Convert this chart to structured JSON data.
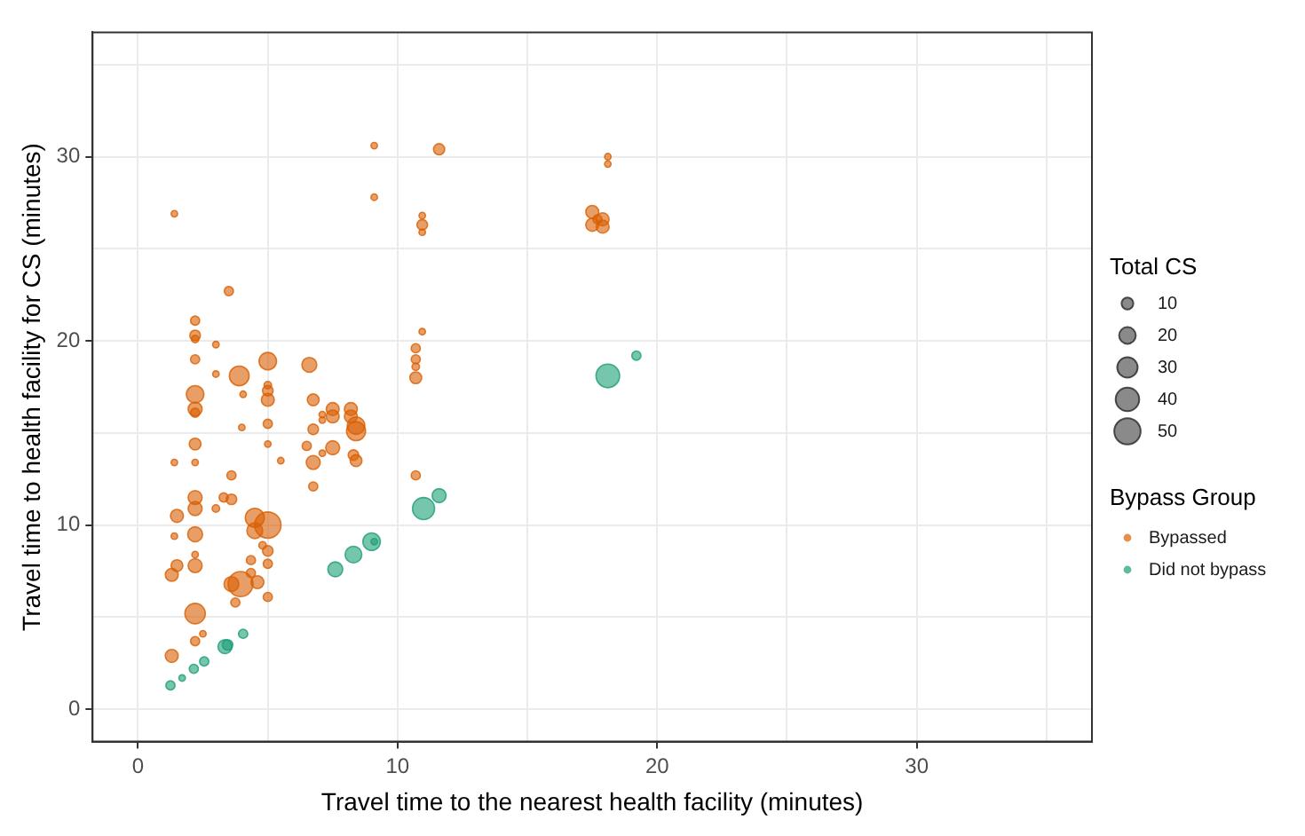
{
  "chart_data": {
    "type": "bubble",
    "xlabel": "Travel time to the nearest health facility (minutes)",
    "ylabel": "Travel time to health facility for CS (minutes)",
    "legend_title": "Bypass Group",
    "annotations": [
      "Total CS"
    ],
    "size_legend": [
      10,
      20,
      30,
      40,
      50
    ],
    "legend": "right",
    "grid": true,
    "xlim": [
      -1.75,
      36.75
    ],
    "ylim": [
      -1.75,
      36.75
    ],
    "xticks": [
      0,
      {
        "value": 5,
        "label": null
      },
      10,
      {
        "value": 15,
        "label": null
      },
      20,
      {
        "value": 25,
        "label": null
      },
      30,
      {
        "value": 35,
        "label": null
      }
    ],
    "yticks": [
      0,
      {
        "value": 5,
        "label": null
      },
      10,
      {
        "value": 15,
        "label": null
      },
      20,
      {
        "value": 25,
        "label": null
      },
      30,
      {
        "value": 35,
        "label": null
      }
    ],
    "series": [
      {
        "name": "Bypassed",
        "color": "#d95f02",
        "x": [
          9.1,
          11.6,
          18.1,
          18.1,
          1.4,
          9.1,
          10.95,
          10.95,
          10.95,
          17.5,
          17.9,
          17.5,
          17.9,
          17.7,
          3.5,
          2.2,
          2.2,
          2.2,
          10.95,
          3.0,
          2.2,
          10.7,
          10.7,
          10.7,
          5.0,
          3.9,
          5.0,
          6.6,
          3.0,
          10.7,
          2.2,
          2.2,
          2.2,
          4.05,
          5.0,
          5.0,
          6.75,
          7.5,
          7.5,
          7.1,
          7.1,
          8.2,
          8.2,
          8.4,
          8.4,
          5.0,
          6.75,
          2.2,
          4.0,
          5.0,
          6.5,
          7.5,
          6.75,
          7.1,
          8.3,
          8.4,
          1.4,
          2.2,
          5.5,
          3.6,
          6.75,
          10.7,
          2.2,
          2.2,
          3.3,
          3.6,
          3.0,
          1.5,
          4.5,
          5.0,
          4.5,
          2.2,
          1.4,
          2.2,
          4.8,
          5.0,
          4.35,
          1.5,
          2.2,
          1.3,
          5.0,
          4.35,
          3.95,
          3.6,
          4.6,
          5.0,
          3.75,
          2.2,
          2.5,
          2.2,
          1.3
        ],
        "values": [
          30.6,
          30.4,
          30.0,
          29.6,
          26.9,
          27.8,
          26.8,
          26.3,
          25.9,
          27.0,
          26.6,
          26.3,
          26.2,
          26.6,
          22.7,
          21.1,
          20.3,
          20.1,
          20.5,
          19.8,
          19.0,
          19.6,
          19.0,
          18.6,
          18.9,
          18.1,
          17.6,
          18.7,
          18.2,
          18.0,
          17.1,
          16.3,
          16.1,
          17.1,
          17.3,
          16.8,
          16.8,
          16.3,
          15.9,
          16.0,
          15.7,
          16.3,
          15.9,
          15.4,
          15.1,
          15.5,
          15.2,
          14.4,
          15.3,
          14.4,
          14.3,
          14.2,
          13.4,
          13.9,
          13.8,
          13.5,
          13.4,
          13.4,
          13.5,
          12.7,
          12.1,
          12.7,
          11.5,
          10.9,
          11.5,
          11.4,
          10.9,
          10.5,
          10.4,
          10.0,
          9.7,
          9.5,
          9.4,
          8.4,
          8.9,
          8.6,
          8.1,
          7.8,
          7.8,
          7.3,
          7.9,
          7.4,
          6.8,
          6.8,
          6.9,
          6.1,
          5.8,
          5.2,
          4.1,
          3.7,
          2.9
        ],
        "sizes": [
          3,
          9,
          3,
          3,
          3,
          3,
          3,
          8,
          3,
          12,
          12,
          12,
          12,
          6,
          6,
          6,
          8,
          4,
          3,
          3,
          6,
          6,
          6,
          4,
          22,
          28,
          4,
          16,
          3,
          10,
          22,
          14,
          6,
          3,
          8,
          12,
          10,
          12,
          12,
          3,
          3,
          12,
          12,
          22,
          26,
          6,
          8,
          10,
          3,
          3,
          6,
          14,
          14,
          3,
          8,
          10,
          3,
          3,
          3,
          6,
          6,
          6,
          14,
          14,
          6,
          8,
          4,
          12,
          26,
          50,
          18,
          16,
          3,
          3,
          4,
          8,
          6,
          10,
          14,
          12,
          6,
          6,
          45,
          16,
          12,
          6,
          6,
          30,
          3,
          6,
          12
        ]
      },
      {
        "name": "Did not bypass",
        "color": "#1b9e77",
        "x": [
          4.05,
          3.35,
          3.45,
          2.55,
          2.15,
          1.7,
          1.25,
          7.6,
          8.3,
          9.0,
          9.1,
          11.0,
          11.6,
          18.1,
          19.2
        ],
        "values": [
          4.1,
          3.4,
          3.5,
          2.6,
          2.2,
          1.7,
          1.3,
          7.6,
          8.4,
          9.1,
          9.1,
          10.9,
          11.6,
          18.1,
          19.2
        ],
        "sizes": [
          6,
          14,
          8,
          6,
          6,
          3,
          6,
          16,
          20,
          22,
          3,
          35,
          14,
          40,
          6
        ]
      }
    ]
  }
}
